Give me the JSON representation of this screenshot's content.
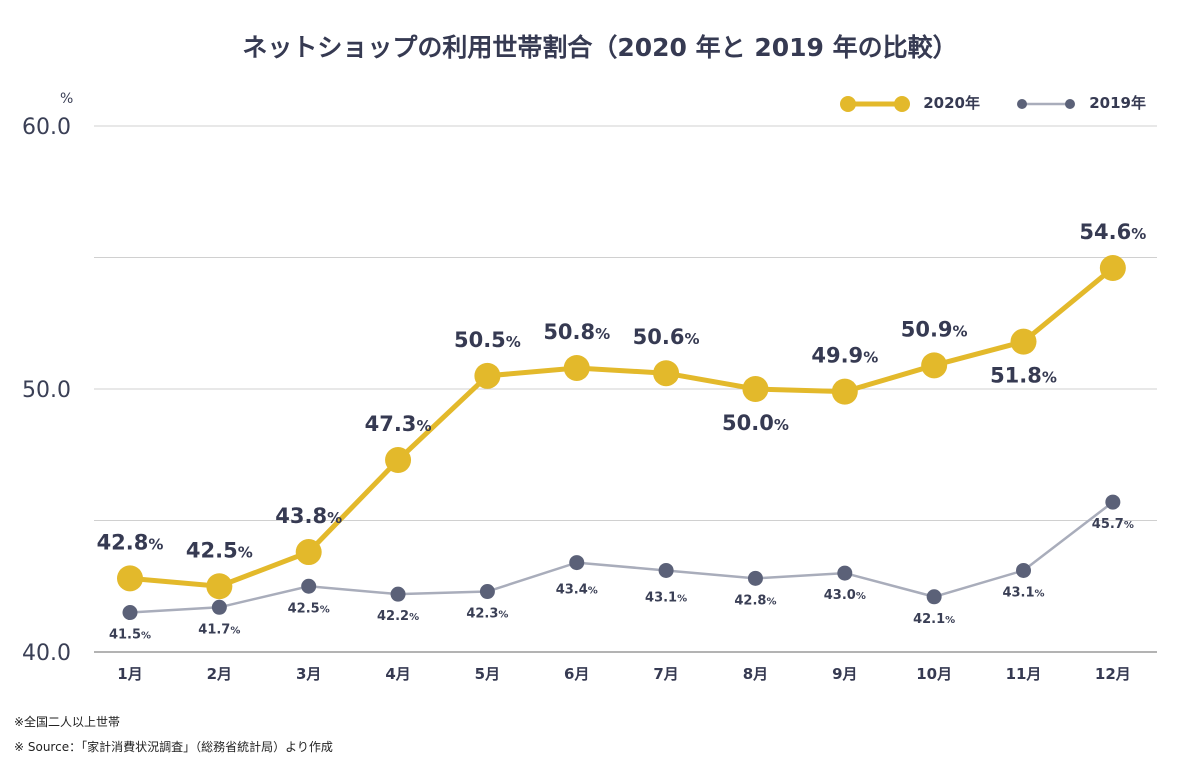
{
  "chart_data": {
    "type": "line",
    "title": "ネットショップの利用世帯割合（2020 年と 2019 年の比較）",
    "ylabel": "%",
    "ylim": [
      40,
      60
    ],
    "yticks": [
      "40.0",
      "50.0",
      "60.0"
    ],
    "categories": [
      "1月",
      "2月",
      "3月",
      "4月",
      "5月",
      "6月",
      "7月",
      "8月",
      "9月",
      "10月",
      "11月",
      "12月"
    ],
    "series": [
      {
        "name": "2020年",
        "color": "#e3b92b",
        "values": [
          42.8,
          42.5,
          43.8,
          47.3,
          50.5,
          50.8,
          50.6,
          50.0,
          49.9,
          50.9,
          51.8,
          54.6
        ],
        "labels": [
          "42.8",
          "42.5",
          "43.8",
          "47.3",
          "50.5",
          "50.8",
          "50.6",
          "50.0",
          "49.9",
          "50.9",
          "51.8",
          "54.6"
        ]
      },
      {
        "name": "2019年",
        "color": "#5b6178",
        "line_color": "#a9adbb",
        "values": [
          41.5,
          41.7,
          42.5,
          42.2,
          42.3,
          43.4,
          43.1,
          42.8,
          43.0,
          42.1,
          43.1,
          45.7
        ],
        "labels": [
          "41.5",
          "41.7",
          "42.5",
          "42.2",
          "42.3",
          "43.4",
          "43.1",
          "42.8",
          "43.0",
          "42.1",
          "43.1",
          "45.7"
        ]
      }
    ],
    "unit": "%",
    "legend_position": "top-right",
    "grid": true
  },
  "footnotes": [
    "※全国二人以上世帯",
    "※ Source：「家計消費状況調査」（総務省統計局）より作成"
  ]
}
